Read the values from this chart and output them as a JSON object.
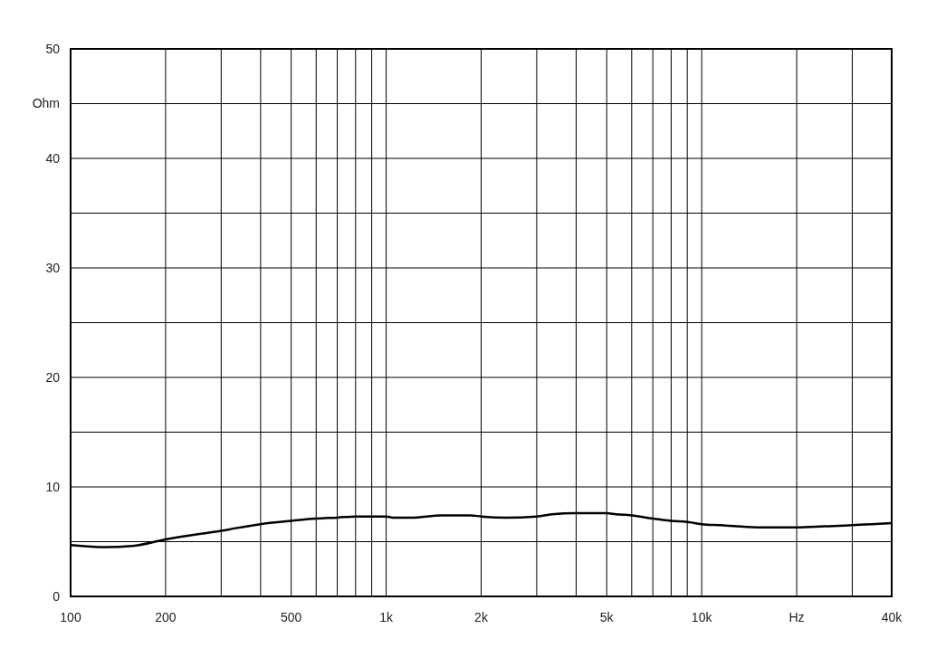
{
  "chart_data": {
    "type": "line",
    "x": [
      100,
      129,
      157,
      200,
      300,
      400,
      500,
      600,
      700,
      800,
      900,
      1000,
      1050,
      1200,
      1500,
      1850,
      2000,
      2400,
      3000,
      3350,
      4000,
      5000,
      5350,
      6000,
      7000,
      8000,
      9000,
      10000,
      11500,
      15000,
      20000,
      24500,
      30000,
      34500,
      40000
    ],
    "series": [
      {
        "color": "#000000",
        "values": [
          4.7,
          4.5,
          4.6,
          5.2,
          6.0,
          6.6,
          6.9,
          7.1,
          7.2,
          7.3,
          7.3,
          7.3,
          7.2,
          7.2,
          7.4,
          7.4,
          7.3,
          7.2,
          7.3,
          7.5,
          7.6,
          7.6,
          7.5,
          7.4,
          7.1,
          6.9,
          6.8,
          6.6,
          6.5,
          6.3,
          6.3,
          6.4,
          6.5,
          6.6,
          6.7
        ]
      }
    ],
    "log": "x",
    "xlim": [
      100,
      40000
    ],
    "xticks": [
      100,
      200,
      {
        "value": 300,
        "label": null
      },
      {
        "value": 400,
        "label": null
      },
      500,
      {
        "value": 600,
        "label": null
      },
      {
        "value": 700,
        "label": null
      },
      {
        "value": 800,
        "label": null
      },
      {
        "value": 900,
        "label": null
      },
      {
        "value": 1000,
        "label": "1k"
      },
      {
        "value": 2000,
        "label": "2k"
      },
      {
        "value": 3000,
        "label": null
      },
      {
        "value": 4000,
        "label": null
      },
      {
        "value": 5000,
        "label": "5k"
      },
      {
        "value": 6000,
        "label": null
      },
      {
        "value": 7000,
        "label": null
      },
      {
        "value": 8000,
        "label": null
      },
      {
        "value": 9000,
        "label": null
      },
      {
        "value": 10000,
        "label": "10k"
      },
      {
        "value": 20000,
        "label": "Hz"
      },
      {
        "value": 30000,
        "label": null
      },
      {
        "value": 40000,
        "label": "40k"
      }
    ],
    "ylim": [
      0,
      50
    ],
    "yticks": [
      0,
      {
        "value": 5,
        "label": null
      },
      10,
      {
        "value": 15,
        "label": null
      },
      20,
      {
        "value": 25,
        "label": null
      },
      30,
      {
        "value": 35,
        "label": null
      },
      40,
      {
        "value": 45,
        "label": "Ohm"
      },
      50
    ],
    "grid": true,
    "marker": "none",
    "line_style": "solid"
  }
}
